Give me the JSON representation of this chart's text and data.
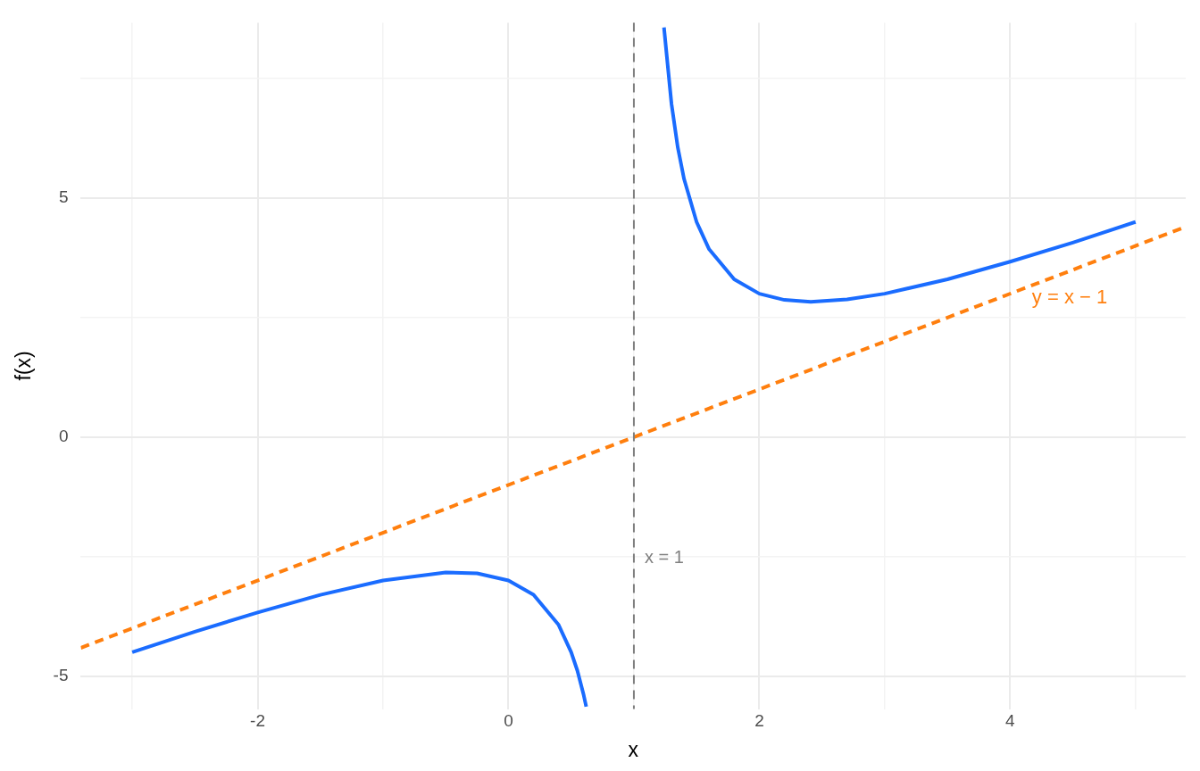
{
  "chart_data": {
    "type": "line",
    "xlabel": "x",
    "ylabel": "f(x)",
    "xlim": [
      -3.41,
      5.4
    ],
    "ylim": [
      -5.69,
      8.67
    ],
    "xticks": [
      {
        "value": -3,
        "label": null
      },
      -2,
      {
        "value": -1,
        "label": null
      },
      0,
      {
        "value": 1,
        "label": null
      },
      2,
      {
        "value": 3,
        "label": null
      },
      4,
      {
        "value": 5,
        "label": null
      }
    ],
    "yticks": [
      -5,
      {
        "value": -2.5,
        "label": null
      },
      0,
      {
        "value": 2.5,
        "label": null
      },
      5,
      {
        "value": 7.5,
        "label": null
      }
    ],
    "grid": true,
    "legend": false,
    "marker": "none",
    "series": [
      {
        "color": "#1a6cff",
        "line_style": "solid",
        "x": [
          -3,
          -2.5,
          -2,
          -1.5,
          -1,
          -0.5,
          -0.25,
          0,
          0.2,
          0.4,
          0.5,
          0.55,
          0.6,
          0.62,
          1,
          1.24,
          1.3,
          1.35,
          1.4,
          1.5,
          1.6,
          1.8,
          2,
          2.2,
          2.41,
          2.7,
          3,
          3.5,
          4,
          4.5,
          5
        ],
        "values": [
          -4.5,
          -4.07,
          -3.67,
          -3.3,
          -3,
          -2.83,
          -2.85,
          -3,
          -3.3,
          -3.93,
          -4.5,
          -4.89,
          -5.4,
          -5.64,
          null,
          8.57,
          6.97,
          6.06,
          5.4,
          4.5,
          3.93,
          3.3,
          3,
          2.87,
          2.83,
          2.88,
          3,
          3.3,
          3.67,
          4.07,
          4.5
        ]
      },
      {
        "name": "y = x − 1",
        "type": "line",
        "color": "#ff7f0e",
        "line_style": "dashed",
        "x": [
          -3.41,
          5.4
        ],
        "values": [
          -4.41,
          4.4
        ]
      }
    ],
    "ref_lines": [
      {
        "axis": "x",
        "value": 1,
        "label": "x = 1",
        "color": "#7f7f7f",
        "line_style": "dashed"
      }
    ]
  }
}
